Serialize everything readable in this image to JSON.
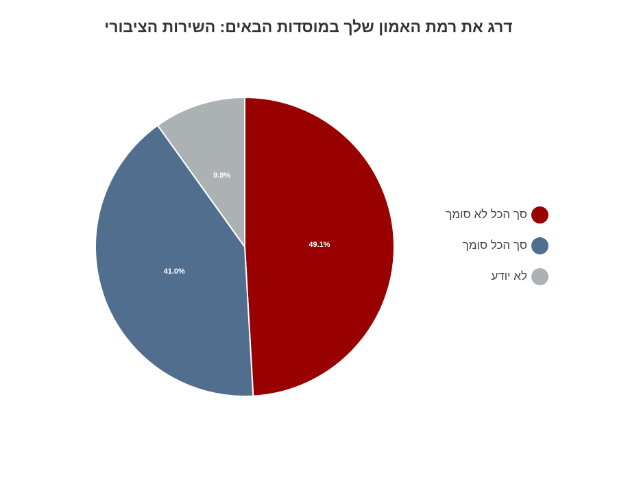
{
  "chart_data": {
    "type": "pie",
    "title": "דרג את רמת האמון שלך במוסדות הבאים: השירות הציבורי",
    "slices": [
      {
        "label": "סך הכל לא סומך",
        "value": 49.1,
        "display": "49.1%",
        "color": "#990000"
      },
      {
        "label": "סך הכל סומך",
        "value": 41.0,
        "display": "41.0%",
        "color": "#516E8F"
      },
      {
        "label": "לא יודע",
        "value": 9.9,
        "display": "9.9%",
        "color": "#ACB2B3"
      }
    ],
    "legend_position": "right",
    "start_angle": "top",
    "direction": "clockwise"
  }
}
